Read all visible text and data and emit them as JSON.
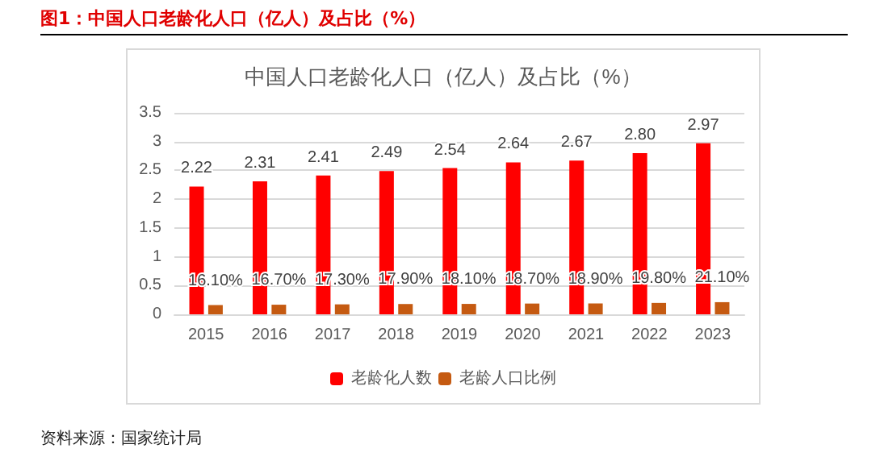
{
  "chart_data": {
    "type": "bar",
    "title": "图1：中国人口老龄化人口（亿人）及占比（%）",
    "subtitle": "中国人口老龄化人口（亿人）及占比（%）",
    "categories": [
      "2015",
      "2016",
      "2017",
      "2018",
      "2019",
      "2020",
      "2021",
      "2022",
      "2023"
    ],
    "series": [
      {
        "name": "老龄化人数",
        "color": "#ff0000",
        "values": [
          2.22,
          2.31,
          2.41,
          2.49,
          2.54,
          2.64,
          2.67,
          2.8,
          2.97
        ],
        "value_labels": [
          "2.22",
          "2.31",
          "2.41",
          "2.49",
          "2.54",
          "2.64",
          "2.67",
          "2.80",
          "2.97"
        ]
      },
      {
        "name": "老龄人口比例",
        "color": "#c55a11",
        "values": [
          0.161,
          0.167,
          0.173,
          0.179,
          0.181,
          0.187,
          0.189,
          0.198,
          0.211
        ],
        "value_labels": [
          "16.10%",
          "16.70%",
          "17.30%",
          "17.90%",
          "18.10%",
          "18.70%",
          "18.90%",
          "19.80%",
          "21.10%"
        ]
      }
    ],
    "ylim": [
      0,
      3.5
    ],
    "yticks": [
      0,
      0.5,
      1,
      1.5,
      2,
      2.5,
      3,
      3.5
    ],
    "grid": "y",
    "legend": "bottom",
    "annotations": [
      "资料来源：国家统计局"
    ]
  }
}
